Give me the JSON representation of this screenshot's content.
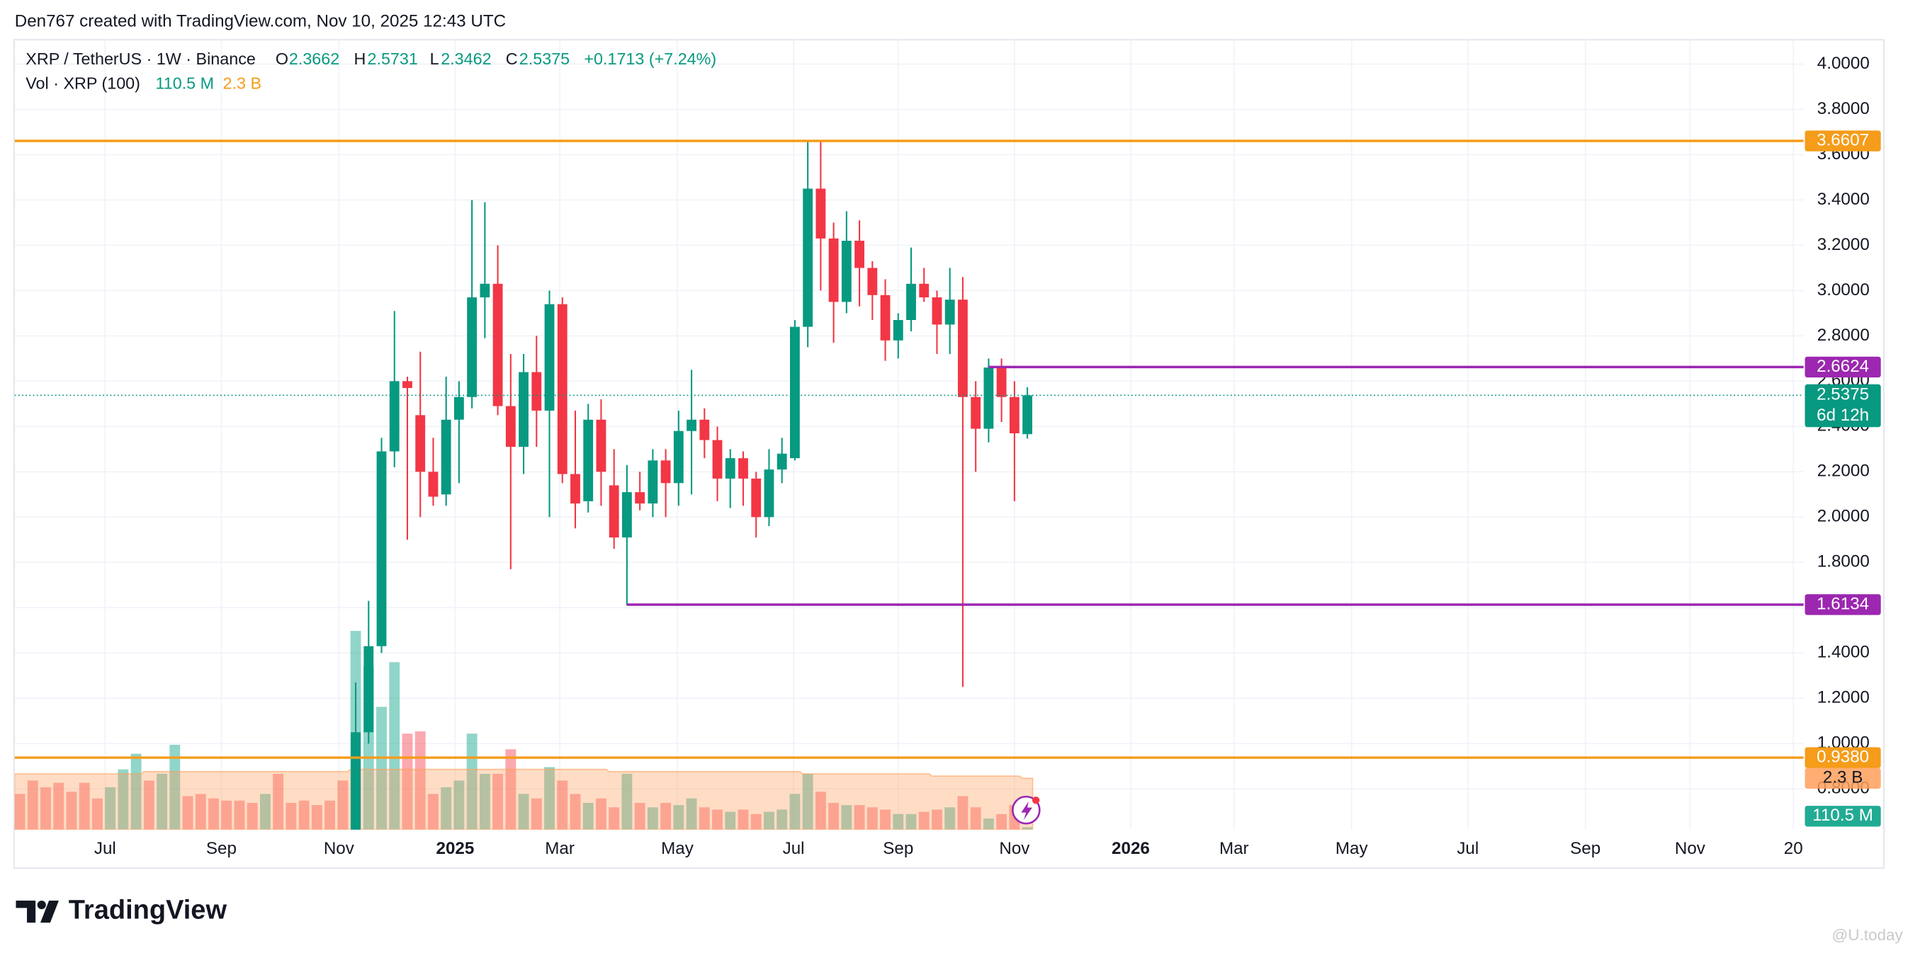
{
  "header": {
    "credit": "Den767 created with TradingView.com, Nov 10, 2025 12:43 UTC"
  },
  "footer": {
    "brand": "TradingView",
    "watermark": "@U.today"
  },
  "chart_data": {
    "type": "candlestick",
    "title": "XRP / TetherUS · 1W · Binance",
    "ohlc_letters": [
      "O",
      "H",
      "L",
      "C"
    ],
    "change": "+0.1713 (+7.24%)",
    "countdown": "6d 12h",
    "up_color": "#089981",
    "down_color": "#f23645",
    "open": [
      null,
      null,
      null,
      null,
      null,
      null,
      null,
      null,
      null,
      null,
      null,
      null,
      null,
      null,
      null,
      null,
      null,
      null,
      null,
      null,
      null,
      null,
      null,
      null,
      null,
      null,
      0.55,
      1.05,
      1.43,
      2.29,
      2.6,
      2.45,
      2.2,
      2.1,
      2.43,
      2.53,
      2.97,
      3.03,
      2.49,
      2.31,
      2.64,
      2.47,
      2.94,
      2.19,
      2.07,
      2.43,
      2.14,
      1.91,
      2.11,
      2.06,
      2.25,
      2.15,
      2.38,
      2.43,
      2.34,
      2.17,
      2.26,
      2.17,
      2.0,
      2.21,
      2.26,
      2.84,
      3.45,
      3.23,
      2.95,
      3.22,
      3.1,
      2.98,
      2.78,
      2.87,
      3.03,
      2.97,
      2.85,
      2.96,
      2.53,
      2.39,
      2.66,
      2.53,
      2.3662
    ],
    "high": [
      null,
      null,
      null,
      null,
      null,
      null,
      null,
      null,
      null,
      null,
      null,
      null,
      null,
      null,
      null,
      null,
      null,
      null,
      null,
      null,
      null,
      null,
      null,
      null,
      null,
      null,
      1.27,
      1.63,
      2.35,
      2.91,
      2.62,
      2.73,
      2.35,
      2.62,
      2.6,
      3.4,
      3.39,
      3.2,
      2.72,
      2.72,
      2.8,
      3.0,
      2.97,
      2.47,
      2.5,
      2.52,
      2.3,
      2.23,
      2.2,
      2.3,
      2.3,
      2.47,
      2.65,
      2.48,
      2.4,
      2.3,
      2.29,
      2.2,
      2.3,
      2.35,
      2.87,
      3.66,
      3.66,
      3.3,
      3.35,
      3.31,
      3.13,
      3.05,
      2.9,
      3.19,
      3.1,
      3.0,
      3.1,
      3.06,
      2.6,
      2.7,
      2.7,
      2.6,
      2.5731
    ],
    "low": [
      null,
      null,
      null,
      null,
      null,
      null,
      null,
      null,
      null,
      null,
      null,
      null,
      null,
      null,
      null,
      null,
      null,
      null,
      null,
      null,
      null,
      null,
      null,
      null,
      null,
      null,
      0.53,
      1.0,
      1.4,
      2.22,
      1.9,
      2.0,
      2.05,
      2.05,
      2.15,
      2.48,
      2.79,
      2.45,
      1.77,
      2.19,
      2.31,
      2.0,
      2.15,
      1.95,
      2.02,
      2.05,
      1.86,
      1.61,
      2.03,
      2.0,
      2.0,
      2.05,
      2.1,
      2.26,
      2.07,
      2.04,
      2.05,
      1.91,
      1.96,
      2.15,
      2.25,
      2.75,
      3.0,
      2.77,
      2.9,
      2.93,
      2.87,
      2.69,
      2.7,
      2.82,
      2.95,
      2.72,
      2.72,
      1.25,
      2.2,
      2.33,
      2.42,
      2.07,
      2.3462
    ],
    "close": [
      null,
      null,
      null,
      null,
      null,
      null,
      null,
      null,
      null,
      null,
      null,
      null,
      null,
      null,
      null,
      null,
      null,
      null,
      null,
      null,
      null,
      null,
      null,
      null,
      null,
      null,
      1.05,
      1.43,
      2.29,
      2.6,
      2.57,
      2.2,
      2.09,
      2.43,
      2.53,
      2.97,
      3.03,
      2.49,
      2.31,
      2.64,
      2.47,
      2.94,
      2.19,
      2.06,
      2.43,
      2.2,
      1.91,
      2.11,
      2.06,
      2.25,
      2.15,
      2.38,
      2.43,
      2.34,
      2.17,
      2.26,
      2.17,
      2.0,
      2.21,
      2.28,
      2.84,
      3.45,
      3.23,
      2.95,
      3.22,
      3.1,
      2.98,
      2.78,
      2.87,
      3.03,
      2.97,
      2.85,
      2.96,
      2.53,
      2.39,
      2.66,
      2.53,
      2.37,
      2.5375
    ],
    "volume": {
      "name": "Vol · XRP (100)",
      "last_label": "110.5 M",
      "ma_last_label": "2.3 B",
      "ma_color": "#ff9f5a",
      "opacity": 0.5,
      "ylim": [
        0,
        35.4
      ],
      "values": [
        1.6,
        2.2,
        1.9,
        2.1,
        1.7,
        2.1,
        1.4,
        1.9,
        2.7,
        3.4,
        2.2,
        2.5,
        3.8,
        1.5,
        1.6,
        1.4,
        1.3,
        1.3,
        1.2,
        1.6,
        2.5,
        1.2,
        1.3,
        1.1,
        1.3,
        2.2,
        8.9,
        7.3,
        5.5,
        7.5,
        4.3,
        4.4,
        1.6,
        1.9,
        2.2,
        4.3,
        2.5,
        2.5,
        3.6,
        1.6,
        1.4,
        2.8,
        2.2,
        1.6,
        1.2,
        1.4,
        1.0,
        2.5,
        1.2,
        1.0,
        1.2,
        1.1,
        1.4,
        1.0,
        0.9,
        0.8,
        0.9,
        0.7,
        0.8,
        0.9,
        1.6,
        2.5,
        1.7,
        1.2,
        1.1,
        1.1,
        1.0,
        0.9,
        0.7,
        0.7,
        0.8,
        0.9,
        1.0,
        1.5,
        1.0,
        0.5,
        0.7,
        1.1,
        0.1105
      ],
      "colors": [
        "#f7525f",
        "#f7525f",
        "#f7525f",
        "#f7525f",
        "#f7525f",
        "#f7525f",
        "#f7525f",
        "#22ab94",
        "#22ab94",
        "#22ab94",
        "#f7525f",
        "#22ab94",
        "#22ab94",
        "#f7525f",
        "#f7525f",
        "#f7525f",
        "#f7525f",
        "#f7525f",
        "#f7525f",
        "#22ab94",
        "#f7525f",
        "#f7525f",
        "#f7525f",
        "#f7525f",
        "#f7525f",
        "#f7525f",
        "#22ab94",
        "#22ab94",
        "#22ab94",
        "#22ab94",
        "#f7525f",
        "#f7525f",
        "#f7525f",
        "#22ab94",
        "#22ab94",
        "#22ab94",
        "#22ab94",
        "#f7525f",
        "#f7525f",
        "#22ab94",
        "#f7525f",
        "#22ab94",
        "#f7525f",
        "#f7525f",
        "#22ab94",
        "#f7525f",
        "#f7525f",
        "#22ab94",
        "#f7525f",
        "#22ab94",
        "#f7525f",
        "#22ab94",
        "#22ab94",
        "#f7525f",
        "#f7525f",
        "#22ab94",
        "#f7525f",
        "#f7525f",
        "#22ab94",
        "#22ab94",
        "#22ab94",
        "#22ab94",
        "#f7525f",
        "#f7525f",
        "#22ab94",
        "#f7525f",
        "#f7525f",
        "#f7525f",
        "#22ab94",
        "#22ab94",
        "#f7525f",
        "#f7525f",
        "#22ab94",
        "#f7525f",
        "#f7525f",
        "#22ab94",
        "#f7525f",
        "#f7525f",
        "#22ab94"
      ],
      "ma": [
        2.5,
        2.5,
        2.5,
        2.5,
        2.5,
        2.5,
        2.5,
        2.5,
        2.5,
        2.5,
        2.6,
        2.6,
        2.6,
        2.6,
        2.6,
        2.6,
        2.6,
        2.6,
        2.6,
        2.6,
        2.6,
        2.6,
        2.6,
        2.6,
        2.6,
        2.6,
        2.7,
        2.7,
        2.7,
        2.7,
        2.7,
        2.7,
        2.7,
        2.7,
        2.7,
        2.7,
        2.7,
        2.7,
        2.7,
        2.7,
        2.7,
        2.7,
        2.7,
        2.7,
        2.7,
        2.7,
        2.6,
        2.6,
        2.6,
        2.6,
        2.6,
        2.6,
        2.6,
        2.6,
        2.6,
        2.6,
        2.6,
        2.6,
        2.6,
        2.6,
        2.6,
        2.5,
        2.5,
        2.5,
        2.5,
        2.5,
        2.5,
        2.5,
        2.5,
        2.5,
        2.5,
        2.4,
        2.4,
        2.4,
        2.4,
        2.4,
        2.4,
        2.4,
        2.3
      ]
    },
    "levels": [
      {
        "value": 3.6607,
        "color": "#f59c1a",
        "from": -0.4
      },
      {
        "value": 2.6624,
        "color": "#9c27b0",
        "from": 75
      },
      {
        "value": 1.6134,
        "color": "#9c27b0",
        "from": 47
      },
      {
        "value": 0.938,
        "label": "0.9380",
        "color": "#f59c1a",
        "from": -0.4
      }
    ],
    "xlim": [
      -0.4,
      138.1
    ],
    "xticks": [
      {
        "value": 6.6,
        "label": "Jul"
      },
      {
        "value": 15.6,
        "label": "Sep"
      },
      {
        "value": 24.7,
        "label": "Nov"
      },
      {
        "value": 33.7,
        "label": "2025"
      },
      {
        "value": 41.8,
        "label": "Mar"
      },
      {
        "value": 50.9,
        "label": "May"
      },
      {
        "value": 59.9,
        "label": "Jul"
      },
      {
        "value": 68.0,
        "label": "Sep"
      },
      {
        "value": 77.0,
        "label": "Nov"
      },
      {
        "value": 86.0,
        "label": "2026"
      },
      {
        "value": 94.0,
        "label": "Mar"
      },
      {
        "value": 103.1,
        "label": "May"
      },
      {
        "value": 112.1,
        "label": "Jul"
      },
      {
        "value": 121.2,
        "label": "Sep"
      },
      {
        "value": 129.3,
        "label": "Nov"
      },
      {
        "value": 137.3,
        "label": "20"
      }
    ],
    "ylim": [
      0.62,
      4.11
    ],
    "yticks": [
      {
        "value": 0.8,
        "label": "0.8000"
      },
      {
        "value": 1.0,
        "label": "1.0000"
      },
      {
        "value": 1.2,
        "label": "1.2000"
      },
      {
        "value": 1.4,
        "label": "1.4000"
      },
      {
        "value": 1.6,
        "label": "1.6000"
      },
      {
        "value": 1.8,
        "label": "1.8000"
      },
      {
        "value": 2.0,
        "label": "2.0000"
      },
      {
        "value": 2.2,
        "label": "2.2000"
      },
      {
        "value": 2.4,
        "label": "2.4000"
      },
      {
        "value": 2.6,
        "label": "2.6000"
      },
      {
        "value": 2.8,
        "label": "2.8000"
      },
      {
        "value": 3.0,
        "label": "3.0000"
      },
      {
        "value": 3.2,
        "label": "3.2000"
      },
      {
        "value": 3.4,
        "label": "3.4000"
      },
      {
        "value": 3.6,
        "label": "3.6000"
      },
      {
        "value": 3.8,
        "label": "3.8000"
      },
      {
        "value": 4.0,
        "label": "4.0000"
      }
    ],
    "grid": true
  }
}
